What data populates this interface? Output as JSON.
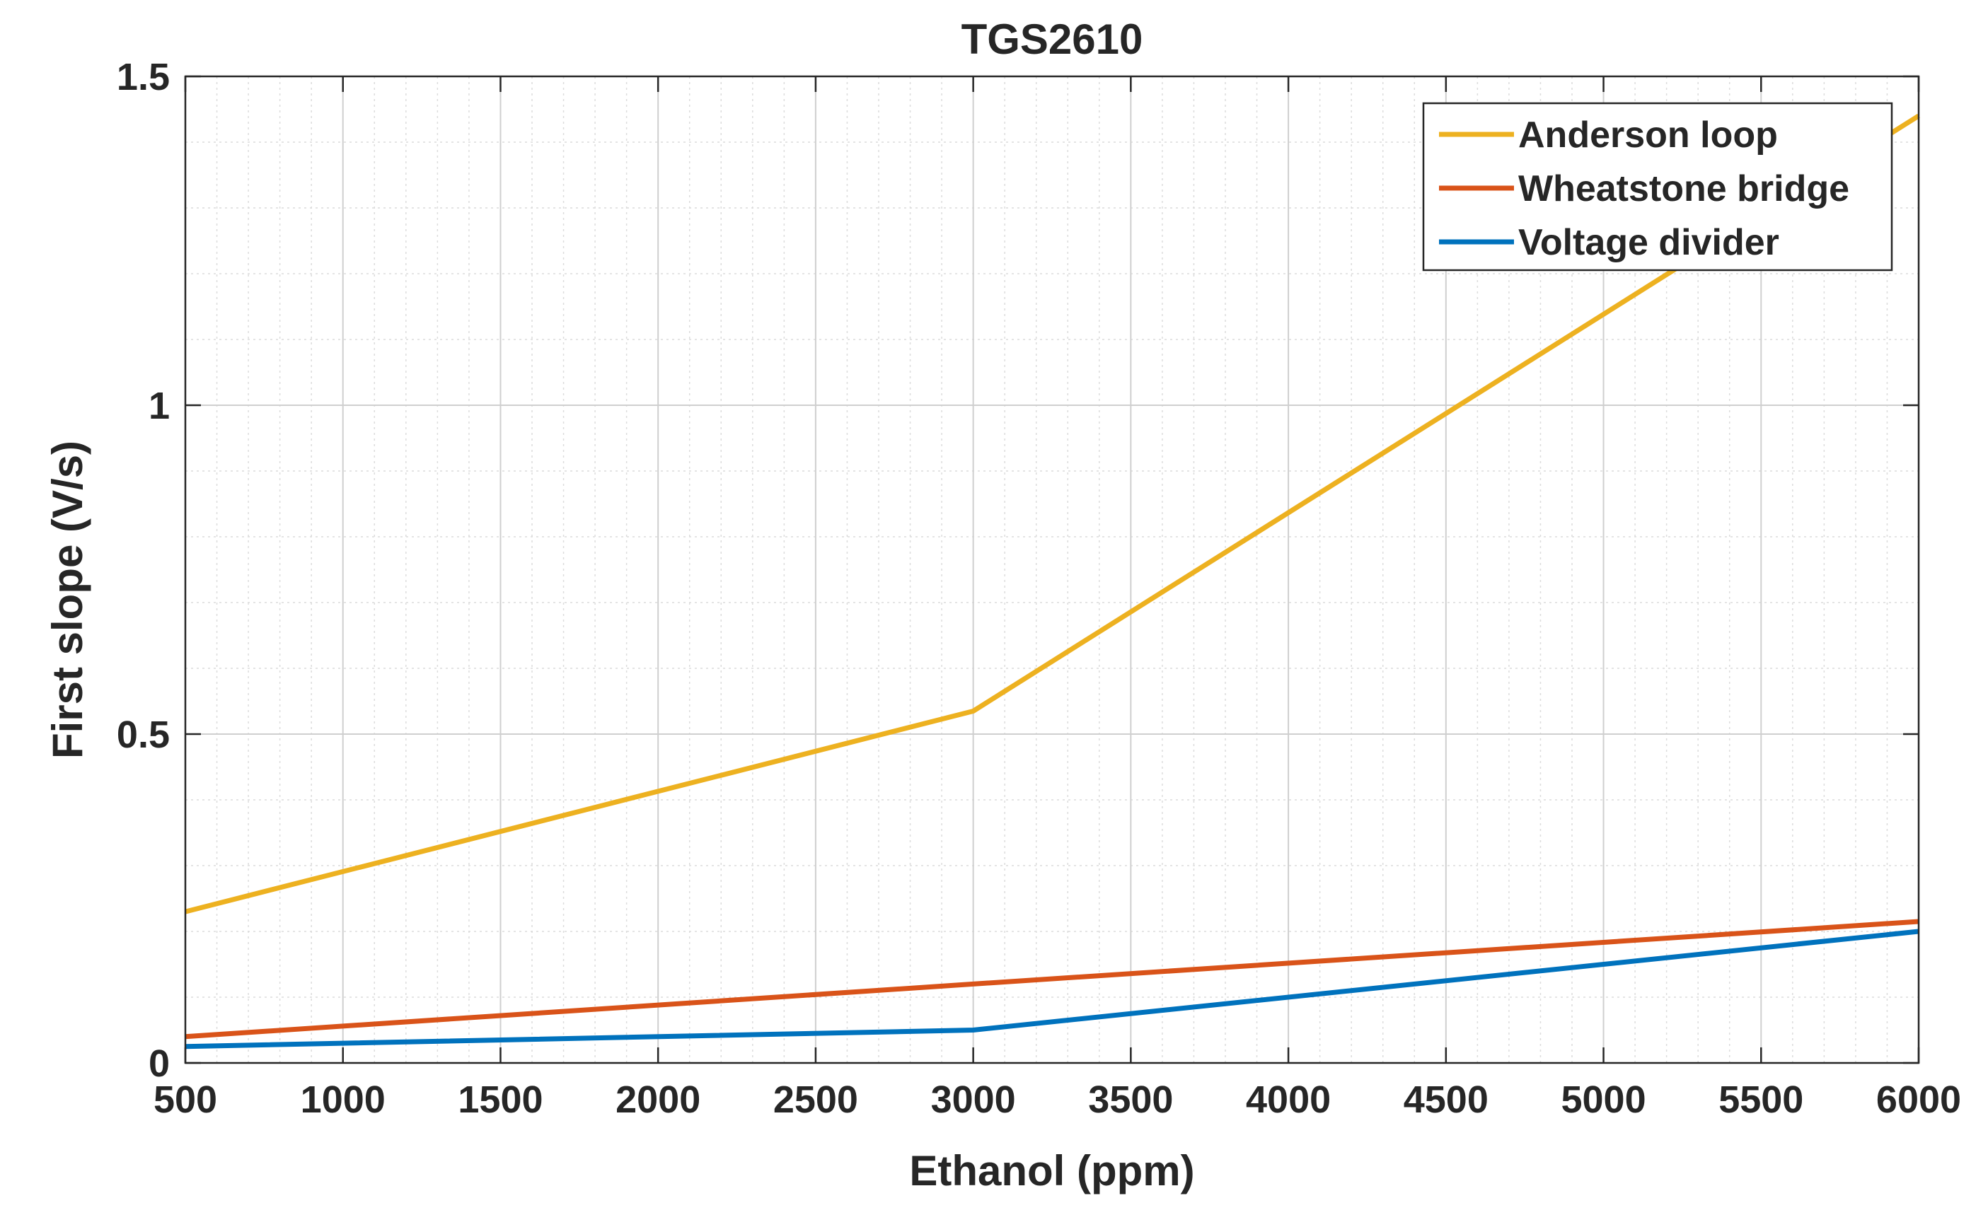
{
  "chart_data": {
    "type": "line",
    "title": "TGS2610",
    "xlabel": "Ethanol (ppm)",
    "ylabel": "First slope (V/s)",
    "xlim": [
      500,
      6000
    ],
    "ylim": [
      0,
      1.5
    ],
    "x_ticks": [
      500,
      1000,
      1500,
      2000,
      2500,
      3000,
      3500,
      4000,
      4500,
      5000,
      5500,
      6000
    ],
    "y_ticks": [
      0,
      0.5,
      1,
      1.5
    ],
    "x_tick_labels": [
      "500",
      "1000",
      "1500",
      "2000",
      "2500",
      "3000",
      "3500",
      "4000",
      "4500",
      "5000",
      "5500",
      "6000"
    ],
    "y_tick_labels": [
      "0",
      "0.5",
      "1",
      "1.5"
    ],
    "grid": true,
    "minor_grid": true,
    "legend_position": "top-right",
    "x": [
      500,
      3000,
      6000
    ],
    "series": [
      {
        "name": "Anderson loop",
        "color": "#EDB120",
        "values": [
          0.23,
          0.535,
          1.44
        ]
      },
      {
        "name": "Wheatstone bridge",
        "color": "#D95319",
        "values": [
          0.04,
          0.12,
          0.215
        ]
      },
      {
        "name": "Voltage divider",
        "color": "#0072BD",
        "values": [
          0.025,
          0.05,
          0.2
        ]
      }
    ]
  }
}
